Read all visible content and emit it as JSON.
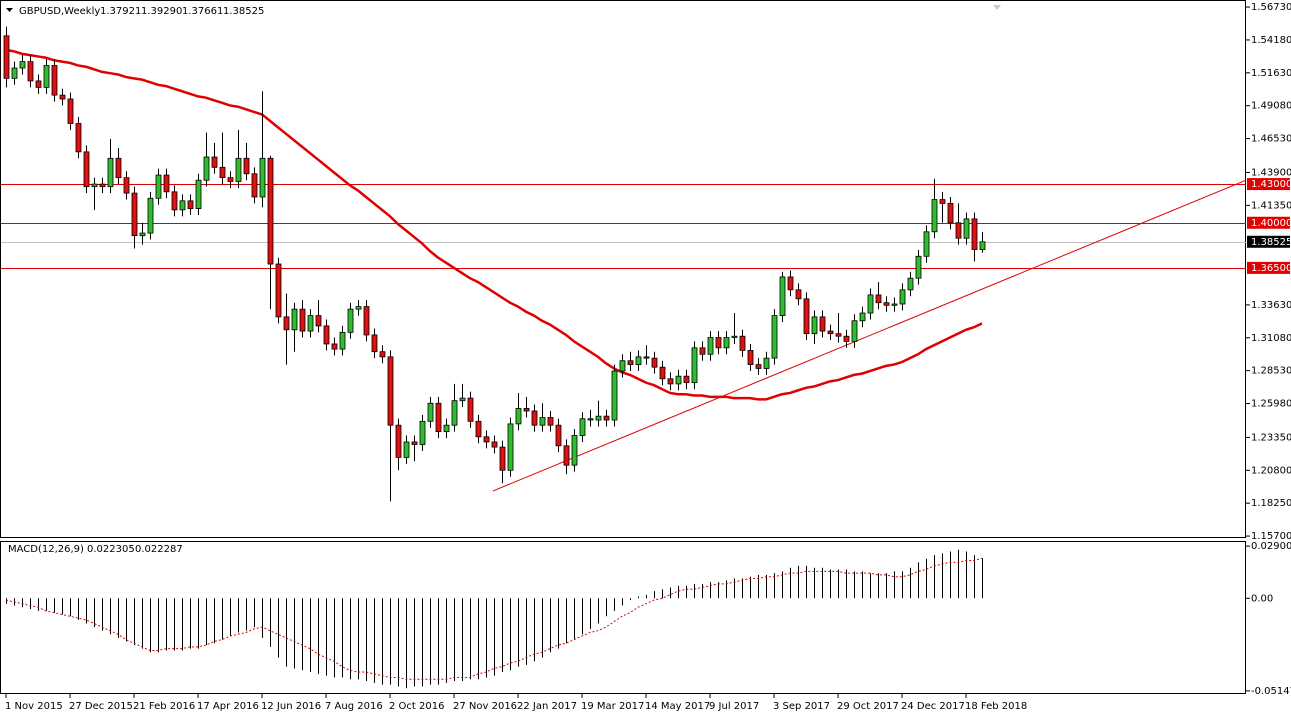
{
  "chart_data": {
    "type": "candlestick",
    "title": "GBPUSD,Weekly",
    "title_values": [
      "1.37921",
      "1.39290",
      "1.37661",
      "1.38525"
    ],
    "categories": [
      "1 Nov 2015",
      null,
      null,
      null,
      null,
      null,
      null,
      null,
      "27 Dec 2015",
      null,
      null,
      null,
      null,
      null,
      null,
      null,
      "21 Feb 2016",
      null,
      null,
      null,
      null,
      null,
      null,
      null,
      "17 Apr 2016",
      null,
      null,
      null,
      null,
      null,
      null,
      null,
      "12 Jun 2016",
      null,
      null,
      null,
      null,
      null,
      null,
      null,
      "7 Aug 2016",
      null,
      null,
      null,
      null,
      null,
      null,
      null,
      "2 Oct 2016",
      null,
      null,
      null,
      null,
      null,
      null,
      null,
      "27 Nov 2016",
      null,
      null,
      null,
      null,
      null,
      null,
      null,
      "22 Jan 2017",
      null,
      null,
      null,
      null,
      null,
      null,
      null,
      "19 Mar 2017",
      null,
      null,
      null,
      null,
      null,
      null,
      null,
      "14 May 2017",
      null,
      null,
      null,
      null,
      null,
      null,
      null,
      "9 Jul 2017",
      null,
      null,
      null,
      null,
      null,
      null,
      null,
      "3 Sep 2017",
      null,
      null,
      null,
      null,
      null,
      null,
      null,
      "29 Oct 2017",
      null,
      null,
      null,
      null,
      null,
      null,
      null,
      "24 Dec 2017",
      null,
      null,
      null,
      null,
      null,
      null,
      null,
      "18 Feb 2018",
      null,
      null
    ],
    "up_color": "#2ebd2e",
    "down_color": "#e01010",
    "candles": [
      [
        1.545,
        1.552,
        1.505,
        1.512
      ],
      [
        1.512,
        1.525,
        1.507,
        1.52
      ],
      [
        1.52,
        1.53,
        1.515,
        1.525
      ],
      [
        1.525,
        1.53,
        1.505,
        1.51
      ],
      [
        1.51,
        1.515,
        1.5,
        1.505
      ],
      [
        1.505,
        1.527,
        1.5,
        1.522
      ],
      [
        1.522,
        1.527,
        1.494,
        1.499
      ],
      [
        1.499,
        1.504,
        1.491,
        1.496
      ],
      [
        1.496,
        1.501,
        1.472,
        1.477
      ],
      [
        1.477,
        1.482,
        1.45,
        1.455
      ],
      [
        1.455,
        1.46,
        1.423,
        1.428
      ],
      [
        1.428,
        1.435,
        1.41,
        1.43
      ],
      [
        1.43,
        1.435,
        1.423,
        1.428
      ],
      [
        1.428,
        1.465,
        1.423,
        1.45
      ],
      [
        1.45,
        1.458,
        1.43,
        1.435
      ],
      [
        1.435,
        1.44,
        1.418,
        1.423
      ],
      [
        1.423,
        1.428,
        1.38,
        1.39
      ],
      [
        1.39,
        1.4,
        1.383,
        1.392
      ],
      [
        1.392,
        1.424,
        1.387,
        1.419
      ],
      [
        1.419,
        1.442,
        1.414,
        1.437
      ],
      [
        1.437,
        1.442,
        1.419,
        1.424
      ],
      [
        1.424,
        1.429,
        1.405,
        1.41
      ],
      [
        1.41,
        1.422,
        1.405,
        1.417
      ],
      [
        1.417,
        1.422,
        1.406,
        1.411
      ],
      [
        1.411,
        1.438,
        1.406,
        1.433
      ],
      [
        1.433,
        1.47,
        1.428,
        1.451
      ],
      [
        1.451,
        1.462,
        1.438,
        1.443
      ],
      [
        1.443,
        1.47,
        1.43,
        1.435
      ],
      [
        1.435,
        1.44,
        1.427,
        1.432
      ],
      [
        1.432,
        1.472,
        1.427,
        1.45
      ],
      [
        1.45,
        1.462,
        1.433,
        1.438
      ],
      [
        1.438,
        1.443,
        1.415,
        1.42
      ],
      [
        1.42,
        1.502,
        1.412,
        1.45
      ],
      [
        1.45,
        1.452,
        1.333,
        1.368
      ],
      [
        1.368,
        1.373,
        1.322,
        1.327
      ],
      [
        1.327,
        1.345,
        1.29,
        1.317
      ],
      [
        1.317,
        1.338,
        1.3,
        1.333
      ],
      [
        1.333,
        1.34,
        1.311,
        1.316
      ],
      [
        1.316,
        1.333,
        1.311,
        1.328
      ],
      [
        1.328,
        1.34,
        1.315,
        1.32
      ],
      [
        1.32,
        1.325,
        1.301,
        1.306
      ],
      [
        1.306,
        1.311,
        1.297,
        1.302
      ],
      [
        1.302,
        1.32,
        1.297,
        1.315
      ],
      [
        1.315,
        1.338,
        1.31,
        1.333
      ],
      [
        1.333,
        1.34,
        1.328,
        1.335
      ],
      [
        1.335,
        1.34,
        1.308,
        1.313
      ],
      [
        1.313,
        1.318,
        1.295,
        1.3
      ],
      [
        1.3,
        1.305,
        1.291,
        1.296
      ],
      [
        1.296,
        1.301,
        1.184,
        1.243
      ],
      [
        1.243,
        1.248,
        1.208,
        1.218
      ],
      [
        1.218,
        1.235,
        1.213,
        1.23
      ],
      [
        1.23,
        1.235,
        1.215,
        1.228
      ],
      [
        1.228,
        1.251,
        1.223,
        1.246
      ],
      [
        1.246,
        1.265,
        1.241,
        1.26
      ],
      [
        1.26,
        1.265,
        1.233,
        1.238
      ],
      [
        1.238,
        1.248,
        1.233,
        1.243
      ],
      [
        1.243,
        1.275,
        1.238,
        1.262
      ],
      [
        1.262,
        1.275,
        1.257,
        1.264
      ],
      [
        1.264,
        1.269,
        1.241,
        1.246
      ],
      [
        1.246,
        1.251,
        1.229,
        1.234
      ],
      [
        1.234,
        1.239,
        1.225,
        1.23
      ],
      [
        1.23,
        1.235,
        1.221,
        1.226
      ],
      [
        1.226,
        1.231,
        1.198,
        1.208
      ],
      [
        1.208,
        1.249,
        1.203,
        1.244
      ],
      [
        1.244,
        1.268,
        1.239,
        1.256
      ],
      [
        1.256,
        1.265,
        1.249,
        1.254
      ],
      [
        1.254,
        1.259,
        1.238,
        1.243
      ],
      [
        1.243,
        1.26,
        1.238,
        1.249
      ],
      [
        1.249,
        1.254,
        1.238,
        1.243
      ],
      [
        1.243,
        1.248,
        1.222,
        1.227
      ],
      [
        1.227,
        1.232,
        1.205,
        1.212
      ],
      [
        1.212,
        1.24,
        1.207,
        1.235
      ],
      [
        1.235,
        1.253,
        1.23,
        1.248
      ],
      [
        1.248,
        1.255,
        1.242,
        1.247
      ],
      [
        1.247,
        1.262,
        1.242,
        1.25
      ],
      [
        1.25,
        1.255,
        1.242,
        1.247
      ],
      [
        1.247,
        1.29,
        1.242,
        1.285
      ],
      [
        1.285,
        1.298,
        1.28,
        1.293
      ],
      [
        1.293,
        1.3,
        1.285,
        1.29
      ],
      [
        1.29,
        1.301,
        1.285,
        1.296
      ],
      [
        1.296,
        1.305,
        1.29,
        1.295
      ],
      [
        1.295,
        1.3,
        1.283,
        1.288
      ],
      [
        1.288,
        1.293,
        1.274,
        1.279
      ],
      [
        1.279,
        1.284,
        1.27,
        1.275
      ],
      [
        1.275,
        1.286,
        1.27,
        1.281
      ],
      [
        1.281,
        1.286,
        1.271,
        1.276
      ],
      [
        1.276,
        1.308,
        1.271,
        1.303
      ],
      [
        1.303,
        1.308,
        1.293,
        1.298
      ],
      [
        1.298,
        1.316,
        1.293,
        1.311
      ],
      [
        1.311,
        1.316,
        1.298,
        1.303
      ],
      [
        1.303,
        1.316,
        1.298,
        1.311
      ],
      [
        1.311,
        1.33,
        1.306,
        1.312
      ],
      [
        1.312,
        1.317,
        1.296,
        1.301
      ],
      [
        1.301,
        1.306,
        1.285,
        1.29
      ],
      [
        1.29,
        1.295,
        1.282,
        1.287
      ],
      [
        1.287,
        1.3,
        1.282,
        1.295
      ],
      [
        1.295,
        1.333,
        1.29,
        1.328
      ],
      [
        1.328,
        1.362,
        1.323,
        1.358
      ],
      [
        1.358,
        1.363,
        1.343,
        1.348
      ],
      [
        1.348,
        1.353,
        1.336,
        1.341
      ],
      [
        1.341,
        1.346,
        1.309,
        1.314
      ],
      [
        1.314,
        1.332,
        1.306,
        1.327
      ],
      [
        1.327,
        1.332,
        1.311,
        1.316
      ],
      [
        1.316,
        1.321,
        1.309,
        1.314
      ],
      [
        1.314,
        1.33,
        1.307,
        1.312
      ],
      [
        1.312,
        1.317,
        1.303,
        1.308
      ],
      [
        1.308,
        1.329,
        1.303,
        1.324
      ],
      [
        1.324,
        1.335,
        1.319,
        1.33
      ],
      [
        1.33,
        1.349,
        1.325,
        1.344
      ],
      [
        1.344,
        1.354,
        1.333,
        1.338
      ],
      [
        1.338,
        1.343,
        1.331,
        1.336
      ],
      [
        1.336,
        1.342,
        1.331,
        1.337
      ],
      [
        1.337,
        1.353,
        1.332,
        1.348
      ],
      [
        1.348,
        1.362,
        1.343,
        1.357
      ],
      [
        1.357,
        1.379,
        1.352,
        1.374
      ],
      [
        1.374,
        1.398,
        1.369,
        1.393
      ],
      [
        1.393,
        1.434,
        1.388,
        1.418
      ],
      [
        1.418,
        1.424,
        1.4,
        1.415
      ],
      [
        1.415,
        1.42,
        1.395,
        1.4
      ],
      [
        1.4,
        1.415,
        1.383,
        1.388
      ],
      [
        1.388,
        1.408,
        1.383,
        1.403
      ],
      [
        1.403,
        1.408,
        1.37,
        1.37921
      ],
      [
        1.37921,
        1.3929,
        1.37661,
        1.38525
      ]
    ],
    "ma": {
      "color": "#e00000",
      "values": [
        1.534,
        1.533,
        1.531,
        1.53,
        1.529,
        1.528,
        1.526,
        1.525,
        1.524,
        1.522,
        1.521,
        1.519,
        1.517,
        1.516,
        1.515,
        1.513,
        1.512,
        1.511,
        1.509,
        1.507,
        1.506,
        1.504,
        1.502,
        1.5,
        1.498,
        1.497,
        1.495,
        1.493,
        1.491,
        1.49,
        1.488,
        1.486,
        1.484,
        1.479,
        1.474,
        1.469,
        1.464,
        1.459,
        1.454,
        1.449,
        1.444,
        1.439,
        1.434,
        1.429,
        1.425,
        1.42,
        1.415,
        1.41,
        1.405,
        1.399,
        1.394,
        1.389,
        1.384,
        1.378,
        1.373,
        1.369,
        1.365,
        1.361,
        1.357,
        1.354,
        1.35,
        1.346,
        1.342,
        1.338,
        1.335,
        1.331,
        1.328,
        1.324,
        1.321,
        1.317,
        1.313,
        1.308,
        1.304,
        1.3,
        1.296,
        1.291,
        1.287,
        1.284,
        1.282,
        1.279,
        1.276,
        1.274,
        1.271,
        1.268,
        1.267,
        1.267,
        1.266,
        1.266,
        1.265,
        1.265,
        1.265,
        1.264,
        1.264,
        1.264,
        1.263,
        1.263,
        1.265,
        1.267,
        1.268,
        1.27,
        1.272,
        1.273,
        1.275,
        1.277,
        1.278,
        1.28,
        1.282,
        1.283,
        1.285,
        1.287,
        1.289,
        1.29,
        1.292,
        1.295,
        1.298,
        1.302,
        1.305,
        1.308,
        1.311,
        1.314,
        1.317,
        1.319,
        1.322
      ]
    },
    "levels": [
      {
        "value": 1.43,
        "label": "1.43000"
      },
      {
        "value": 1.4,
        "label": "1.40000"
      },
      {
        "value": 1.365,
        "label": "1.36500"
      }
    ],
    "level_color": "#e00000",
    "last_price": {
      "value": 1.38525,
      "label": "1.38525"
    },
    "trendline": {
      "from": 1.192,
      "to": 1.433,
      "color": "#e00000"
    },
    "ylim": [
      1.1555,
      1.572
    ],
    "yticks": [
      {
        "value": 1.5673,
        "label": "1.56730"
      },
      {
        "value": 1.5418,
        "label": "1.54180"
      },
      {
        "value": 1.5163,
        "label": "1.51630"
      },
      {
        "value": 1.4908,
        "label": "1.49080"
      },
      {
        "value": 1.4653,
        "label": "1.46530"
      },
      {
        "value": 1.439,
        "label": "1.43900"
      },
      {
        "value": 1.4135,
        "label": "1.41350"
      },
      {
        "value": 1.3363,
        "label": "1.33630"
      },
      {
        "value": 1.3108,
        "label": "1.31080"
      },
      {
        "value": 1.2853,
        "label": "1.28530"
      },
      {
        "value": 1.2598,
        "label": "1.25980"
      },
      {
        "value": 1.2335,
        "label": "1.23350"
      },
      {
        "value": 1.208,
        "label": "1.20800"
      },
      {
        "value": 1.1825,
        "label": "1.18250"
      },
      {
        "value": 1.157,
        "label": "1.15700"
      }
    ],
    "indicator": {
      "type": "macd",
      "title": "MACD(12,26,9)",
      "histogram": {
        "color": "#000000",
        "values": [
          -0.003,
          -0.004,
          -0.005,
          -0.006,
          -0.007,
          -0.007,
          -0.008,
          -0.009,
          -0.01,
          -0.012,
          -0.014,
          -0.016,
          -0.018,
          -0.02,
          -0.022,
          -0.024,
          -0.026,
          -0.028,
          -0.03,
          -0.03,
          -0.029,
          -0.029,
          -0.029,
          -0.028,
          -0.028,
          -0.026,
          -0.025,
          -0.023,
          -0.021,
          -0.019,
          -0.018,
          -0.016,
          -0.022,
          -0.027,
          -0.033,
          -0.038,
          -0.039,
          -0.04,
          -0.041,
          -0.042,
          -0.043,
          -0.044,
          -0.044,
          -0.045,
          -0.045,
          -0.046,
          -0.047,
          -0.048,
          -0.048,
          -0.049,
          -0.05,
          -0.049,
          -0.049,
          -0.048,
          -0.048,
          -0.047,
          -0.046,
          -0.046,
          -0.045,
          -0.045,
          -0.044,
          -0.043,
          -0.041,
          -0.04,
          -0.038,
          -0.037,
          -0.035,
          -0.033,
          -0.03,
          -0.028,
          -0.025,
          -0.023,
          -0.02,
          -0.017,
          -0.014,
          -0.01,
          -0.007,
          -0.004,
          -0.001,
          0.001,
          0.002,
          0.004,
          0.005,
          0.006,
          0.007,
          0.007,
          0.008,
          0.008,
          0.009,
          0.009,
          0.01,
          0.011,
          0.011,
          0.012,
          0.013,
          0.013,
          0.014,
          0.015,
          0.017,
          0.018,
          0.018,
          0.017,
          0.017,
          0.016,
          0.016,
          0.016,
          0.015,
          0.015,
          0.014,
          0.014,
          0.014,
          0.015,
          0.015,
          0.017,
          0.02,
          0.022,
          0.024,
          0.025,
          0.026,
          0.027,
          0.026,
          0.024,
          0.022305
        ]
      },
      "signal": {
        "color": "#e00000",
        "values": [
          -0.001,
          -0.002,
          -0.003,
          -0.004,
          -0.005,
          -0.007,
          -0.008,
          -0.009,
          -0.01,
          -0.011,
          -0.012,
          -0.014,
          -0.016,
          -0.018,
          -0.02,
          -0.023,
          -0.025,
          -0.027,
          -0.029,
          -0.029,
          -0.028,
          -0.028,
          -0.028,
          -0.027,
          -0.027,
          -0.026,
          -0.024,
          -0.023,
          -0.021,
          -0.02,
          -0.019,
          -0.017,
          -0.016,
          -0.018,
          -0.02,
          -0.022,
          -0.024,
          -0.026,
          -0.028,
          -0.031,
          -0.033,
          -0.035,
          -0.038,
          -0.04,
          -0.041,
          -0.041,
          -0.042,
          -0.043,
          -0.044,
          -0.044,
          -0.045,
          -0.045,
          -0.045,
          -0.045,
          -0.045,
          -0.045,
          -0.044,
          -0.044,
          -0.044,
          -0.042,
          -0.041,
          -0.039,
          -0.038,
          -0.036,
          -0.035,
          -0.033,
          -0.031,
          -0.03,
          -0.028,
          -0.026,
          -0.025,
          -0.023,
          -0.021,
          -0.019,
          -0.018,
          -0.016,
          -0.013,
          -0.01,
          -0.008,
          -0.005,
          -0.003,
          -0.001,
          0.0,
          0.002,
          0.004,
          0.005,
          0.005,
          0.006,
          0.007,
          0.008,
          0.008,
          0.009,
          0.01,
          0.011,
          0.011,
          0.012,
          0.012,
          0.013,
          0.014,
          0.014,
          0.015,
          0.015,
          0.015,
          0.015,
          0.015,
          0.014,
          0.014,
          0.014,
          0.014,
          0.013,
          0.013,
          0.012,
          0.012,
          0.013,
          0.015,
          0.016,
          0.018,
          0.019,
          0.02,
          0.02,
          0.021,
          0.021,
          0.022287
        ]
      },
      "ylim": [
        -0.0532,
        0.0313
      ],
      "yticks": [
        0.029008,
        {
          "value": 0,
          "label": "0.00"
        },
        -0.051476
      ]
    }
  }
}
